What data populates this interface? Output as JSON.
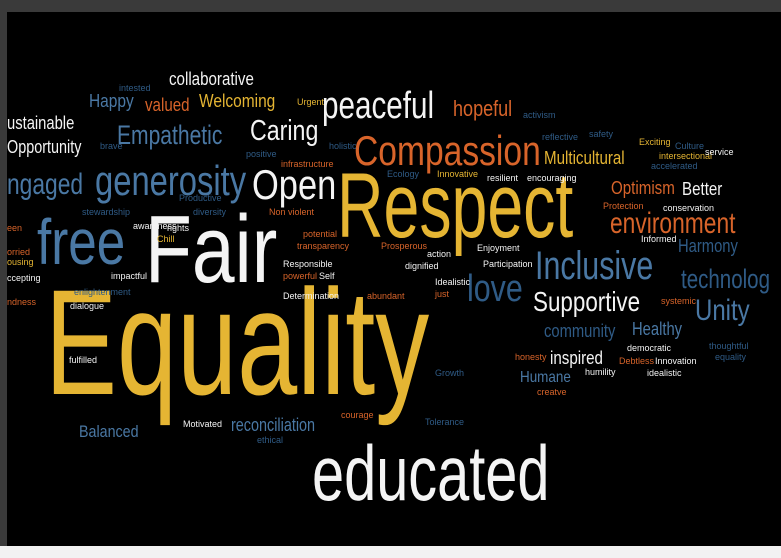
{
  "colors": {
    "yellow": "#e5b533",
    "white": "#f4f4f4",
    "blue": "#4a78a4",
    "orange": "#d8642a",
    "dark_blue": "#2f5b86",
    "background": "#000000"
  },
  "words": {
    "equality": "Equality",
    "respect": "Respect",
    "fair": "Fair",
    "educated": "educated",
    "free": "free",
    "compassion": "Compassion",
    "generosity": "generosity",
    "open": "Open",
    "inclusive": "Inclusive",
    "peaceful": "peaceful",
    "love": "love",
    "environment": "environment",
    "supportive": "Supportive",
    "empathetic": "Empathetic",
    "caring": "Caring",
    "engaged": "ngaged",
    "unity": "Unity",
    "technology": "technolog",
    "sustainable": "ustainable",
    "opportunity": "Opportunity",
    "hopeful": "hopeful",
    "collaborative": "collaborative",
    "welcoming": "Welcoming",
    "happy": "Happy",
    "valued": "valued",
    "multicultural": "Multicultural",
    "optimism": "Optimism",
    "better": "Better",
    "harmony": "Harmony",
    "community": "community",
    "healthy": "Healthy",
    "inspired": "inspired",
    "humane": "Humane",
    "reconciliation": "reconciliation",
    "balanced": "Balanced",
    "intested": "intested",
    "urgent": "Urgent",
    "activism": "activism",
    "reflective": "reflective",
    "safety": "safety",
    "exciting": "Exciting",
    "culture": "Culture",
    "intersectional": "intersectional",
    "service": "service",
    "accelerated": "accelerated",
    "brave": "brave",
    "holistic": "holistic",
    "positive": "positive",
    "infrastructure": "infrastructure",
    "ecology": "Ecology",
    "innovative": "Innovative",
    "resilient": "resilient",
    "encouraging": "encouraging",
    "conservation": "conservation",
    "stewardship": "stewardship",
    "productive": "Productive",
    "diversity": "diversity",
    "protection": "Protection",
    "awareness": "awareness",
    "chill": "Chill",
    "rights": "rights",
    "non_violent": "Non violent",
    "potential": "potential",
    "transparency": "transparency",
    "prosperous": "Prosperous",
    "action": "action",
    "enjoyment": "Enjoyment",
    "informed": "Informed",
    "een": "een",
    "orried": "orried",
    "ousing": "ousing",
    "ccepting": "ccepting",
    "ndness": "ndness",
    "impactful": "impactful",
    "responsible": "Responsible",
    "powerful": "powerful",
    "self": "Self",
    "dignified": "dignified",
    "participation": "Participation",
    "idealistic_cap": "Idealistic",
    "just": "just",
    "enlightenment": "enlightenment",
    "determination": "Determination",
    "abundant": "abundant",
    "systemic": "systemic",
    "dialogue": "dialogue",
    "thoughtful": "thoughtful",
    "equality_small": "equality",
    "fulfilled": "fulfilled",
    "honesty": "honesty",
    "democratic": "democratic",
    "humility": "humility",
    "debtless": "Debtless",
    "innovation": "Innovation",
    "idealistic": "idealistic",
    "growth": "Growth",
    "creatve": "creatve",
    "courage": "courage",
    "tolerance": "Tolerance",
    "motivated": "Motivated",
    "ethical": "ethical"
  }
}
